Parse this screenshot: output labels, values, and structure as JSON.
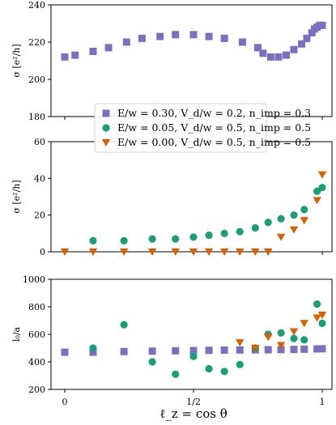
{
  "chart_data": [
    {
      "type": "scatter",
      "ylabel": "σ [e²/h]",
      "xlim": [
        0,
        1
      ],
      "ylim": [
        180,
        240
      ],
      "yticks": [
        "180",
        "200",
        "220",
        "240"
      ],
      "series": [
        {
          "name": "E/w = 0.30, V_d/w = 0.2, n_imp = 0.3",
          "color": "#7b70c0",
          "marker": "square",
          "x": [
            0.0,
            0.04,
            0.11,
            0.17,
            0.24,
            0.3,
            0.37,
            0.43,
            0.5,
            0.56,
            0.62,
            0.69,
            0.75,
            0.77,
            0.8,
            0.83,
            0.86,
            0.89,
            0.92,
            0.94,
            0.96,
            0.97,
            0.98,
            0.99,
            1.0
          ],
          "y": [
            212,
            213,
            215,
            217,
            220,
            222,
            223,
            224,
            224,
            223,
            222,
            220,
            217,
            214,
            212,
            212,
            213,
            216,
            219,
            222,
            225,
            227,
            228,
            229,
            229
          ]
        }
      ]
    },
    {
      "type": "scatter",
      "ylabel": "σ [e²/h]",
      "xlim": [
        0,
        1
      ],
      "ylim": [
        0,
        60
      ],
      "yticks": [
        "0",
        "20",
        "40",
        "60"
      ],
      "series": [
        {
          "name": "E/w = 0.05, V_d/w = 0.5, n_imp = 0.5",
          "color": "#1a9e77",
          "marker": "circle",
          "x": [
            0.11,
            0.23,
            0.34,
            0.43,
            0.5,
            0.56,
            0.62,
            0.68,
            0.74,
            0.79,
            0.84,
            0.89,
            0.93,
            0.98,
            1.0
          ],
          "y": [
            6,
            6,
            7,
            7,
            8,
            9,
            10,
            11,
            13,
            16,
            18,
            20,
            23,
            33,
            35
          ]
        },
        {
          "name": "E/w = 0.00, V_d/w = 0.5, n_imp = 0.5",
          "color": "#d95f02",
          "marker": "triangle-down",
          "x": [
            0.0,
            0.11,
            0.23,
            0.34,
            0.43,
            0.5,
            0.56,
            0.62,
            0.68,
            0.74,
            0.79,
            0.84,
            0.89,
            0.93,
            0.98,
            1.0
          ],
          "y": [
            0,
            0,
            0,
            0,
            0,
            0,
            0,
            0,
            0,
            0,
            0,
            8,
            12,
            17,
            28,
            42
          ]
        }
      ]
    },
    {
      "type": "scatter",
      "ylabel": "l₀/a",
      "xlabel": "ℓ_z = cos θ",
      "xlim": [
        0,
        1
      ],
      "ylim": [
        200,
        1000
      ],
      "yticks": [
        "200",
        "400",
        "600",
        "800",
        "1000"
      ],
      "xticks": [
        "0",
        "1/2",
        "1"
      ],
      "series": [
        {
          "name": "E/w = 0.30, V_d/w = 0.2, n_imp = 0.3",
          "color": "#7b70c0",
          "marker": "square",
          "x": [
            0.0,
            0.11,
            0.23,
            0.34,
            0.43,
            0.5,
            0.56,
            0.62,
            0.68,
            0.74,
            0.79,
            0.84,
            0.89,
            0.93,
            0.98,
            1.0
          ],
          "y": [
            470,
            470,
            475,
            478,
            480,
            482,
            484,
            485,
            486,
            487,
            488,
            489,
            490,
            492,
            494,
            495
          ]
        },
        {
          "name": "E/w = 0.05, V_d/w = 0.5, n_imp = 0.5",
          "color": "#1a9e77",
          "marker": "circle",
          "x": [
            0.11,
            0.23,
            0.34,
            0.43,
            0.5,
            0.56,
            0.62,
            0.68,
            0.74,
            0.79,
            0.84,
            0.89,
            0.93,
            0.98,
            1.0
          ],
          "y": [
            500,
            670,
            400,
            310,
            440,
            350,
            330,
            380,
            500,
            600,
            610,
            570,
            560,
            820,
            680
          ]
        },
        {
          "name": "E/w = 0.00, V_d/w = 0.5, n_imp = 0.5",
          "color": "#d95f02",
          "marker": "triangle-down",
          "x": [
            0.68,
            0.74,
            0.79,
            0.84,
            0.89,
            0.93,
            0.98,
            1.0
          ],
          "y": [
            540,
            500,
            580,
            520,
            620,
            680,
            720,
            740
          ]
        }
      ]
    }
  ],
  "legend": {
    "placement": "upper-center, overlapping top and middle panels",
    "entries": [
      {
        "label": "E/w = 0.30, V_d/w = 0.2, n_imp = 0.3",
        "color": "#7b70c0",
        "marker": "square"
      },
      {
        "label": "E/w = 0.05, V_d/w = 0.5, n_imp = 0.5",
        "color": "#1a9e77",
        "marker": "circle"
      },
      {
        "label": "E/w = 0.00, V_d/w = 0.5, n_imp = 0.5",
        "color": "#d95f02",
        "marker": "triangle-down"
      }
    ]
  }
}
